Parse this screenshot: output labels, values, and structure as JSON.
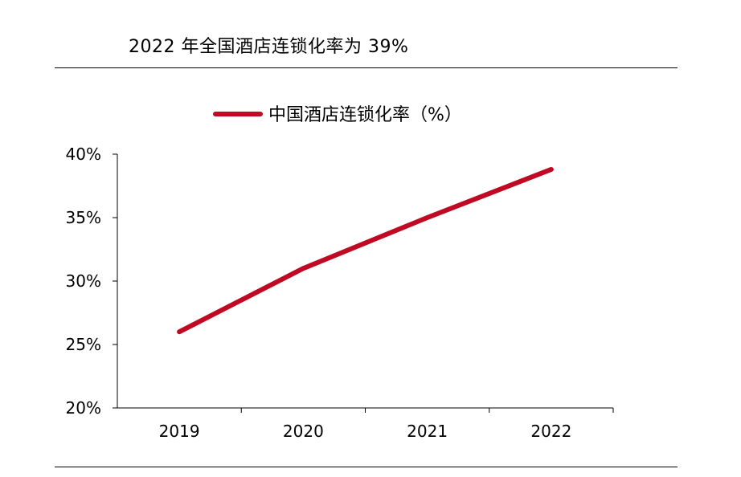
{
  "header": {
    "title": "2022 年全国酒店连锁化率为 39%"
  },
  "chart_data": {
    "type": "line",
    "title": "",
    "xlabel": "",
    "ylabel": "",
    "legend_position": "top-center",
    "grid": false,
    "x": [
      "2019",
      "2020",
      "2021",
      "2022"
    ],
    "ylim": [
      20,
      40
    ],
    "yticks": [
      20,
      25,
      30,
      35,
      40
    ],
    "ytick_labels": [
      "20%",
      "25%",
      "30%",
      "35%",
      "40%"
    ],
    "series": [
      {
        "name": "中国酒店连锁化率（%）",
        "color": "#c00a23",
        "values": [
          26,
          31,
          35,
          38.8
        ]
      }
    ]
  }
}
